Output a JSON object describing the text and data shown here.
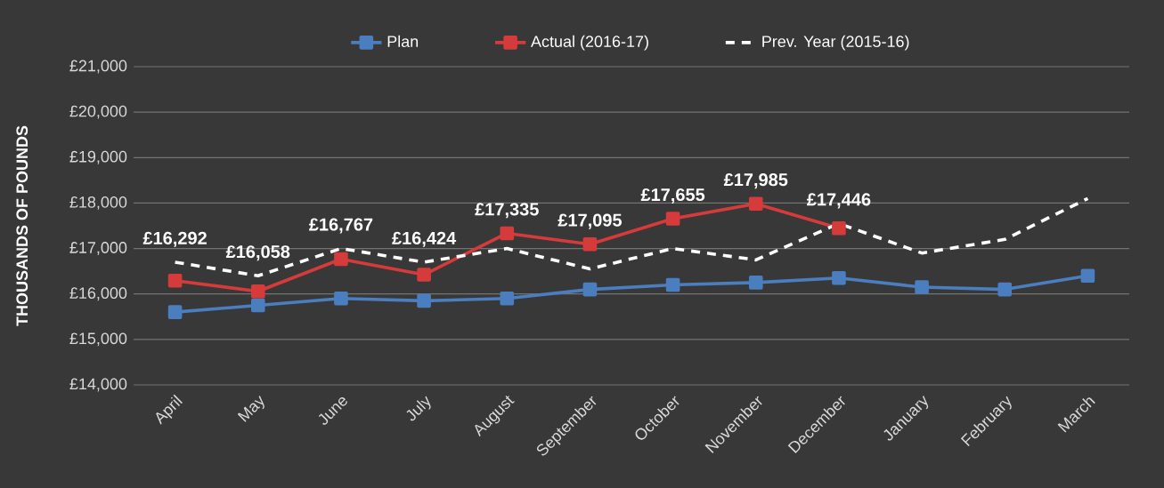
{
  "chart_data": {
    "type": "line",
    "ylabel": "THOUSANDS OF POUNDS",
    "categories": [
      "April",
      "May",
      "June",
      "July",
      "August",
      "September",
      "October",
      "November",
      "December",
      "January",
      "February",
      "March"
    ],
    "series": [
      {
        "name": "Plan",
        "color": "#4a7ebf",
        "marker": "square",
        "line_style": "solid",
        "values": [
          15600,
          15750,
          15900,
          15850,
          15900,
          16100,
          16200,
          16250,
          16350,
          16150,
          16100,
          16400
        ]
      },
      {
        "name": "Actual (2016-17)",
        "color": "#d63b3b",
        "marker": "square",
        "line_style": "solid",
        "values": [
          16292,
          16058,
          16767,
          16424,
          17335,
          17095,
          17655,
          17985,
          17446,
          null,
          null,
          null
        ],
        "value_labels": [
          "£16,292",
          "£16,058",
          "£16,767",
          "£16,424",
          "£17,335",
          "£17,095",
          "£17,655",
          "£17,985",
          "£17,446",
          null,
          null,
          null
        ]
      },
      {
        "name": "Prev. Year (2015-16)",
        "color": "#ffffff",
        "marker": "none",
        "line_style": "dashed",
        "values": [
          16700,
          16400,
          17000,
          16700,
          17000,
          16550,
          17000,
          16750,
          17550,
          16900,
          17200,
          18100
        ]
      }
    ],
    "ylim": [
      14000,
      21000
    ],
    "yticks": [
      {
        "value": 14000,
        "label": "£14,000"
      },
      {
        "value": 15000,
        "label": "£15,000"
      },
      {
        "value": 16000,
        "label": "£16,000"
      },
      {
        "value": 17000,
        "label": "£17,000"
      },
      {
        "value": 18000,
        "label": "£18,000"
      },
      {
        "value": 19000,
        "label": "£19,000"
      },
      {
        "value": 20000,
        "label": "£20,000"
      },
      {
        "value": 21000,
        "label": "£21,000"
      }
    ],
    "grid": "y",
    "legend": "top"
  }
}
